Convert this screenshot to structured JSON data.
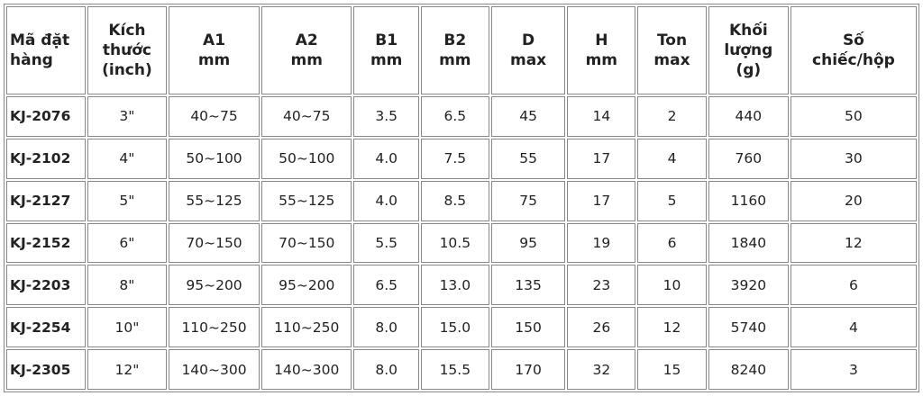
{
  "table": {
    "header": [
      [
        "Mã đặt",
        "hàng"
      ],
      [
        "Kích",
        "thước",
        "(inch)"
      ],
      [
        "A1",
        "mm"
      ],
      [
        "A2",
        "mm"
      ],
      [
        "B1",
        "mm"
      ],
      [
        "B2",
        "mm"
      ],
      [
        "D",
        "max"
      ],
      [
        "H",
        "mm"
      ],
      [
        "Ton",
        "max"
      ],
      [
        "Khối",
        "lượng",
        "(g)"
      ],
      [
        "Số",
        "chiếc/hộp"
      ]
    ],
    "rows": [
      [
        "KJ-2076",
        "3\"",
        "40~75",
        "40~75",
        "3.5",
        "6.5",
        "45",
        "14",
        "2",
        "440",
        "50"
      ],
      [
        "KJ-2102",
        "4\"",
        "50~100",
        "50~100",
        "4.0",
        "7.5",
        "55",
        "17",
        "4",
        "760",
        "30"
      ],
      [
        "KJ-2127",
        "5\"",
        "55~125",
        "55~125",
        "4.0",
        "8.5",
        "75",
        "17",
        "5",
        "1160",
        "20"
      ],
      [
        "KJ-2152",
        "6\"",
        "70~150",
        "70~150",
        "5.5",
        "10.5",
        "95",
        "19",
        "6",
        "1840",
        "12"
      ],
      [
        "KJ-2203",
        "8\"",
        "95~200",
        "95~200",
        "6.5",
        "13.0",
        "135",
        "23",
        "10",
        "3920",
        "6"
      ],
      [
        "KJ-2254",
        "10\"",
        "110~250",
        "110~250",
        "8.0",
        "15.0",
        "150",
        "26",
        "12",
        "5740",
        "4"
      ],
      [
        "KJ-2305",
        "12\"",
        "140~300",
        "140~300",
        "8.0",
        "15.5",
        "170",
        "32",
        "15",
        "8240",
        "3"
      ]
    ]
  }
}
